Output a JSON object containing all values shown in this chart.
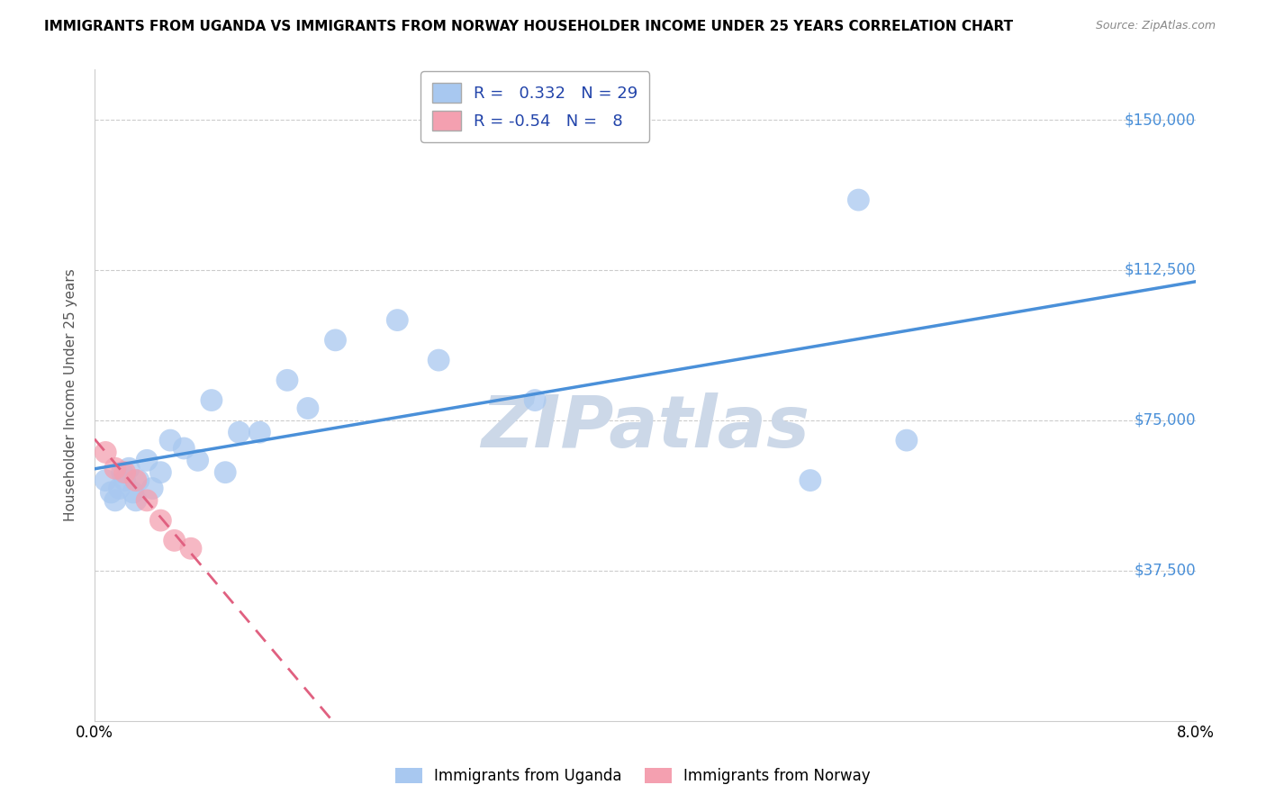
{
  "title": "IMMIGRANTS FROM UGANDA VS IMMIGRANTS FROM NORWAY HOUSEHOLDER INCOME UNDER 25 YEARS CORRELATION CHART",
  "source": "Source: ZipAtlas.com",
  "ylabel": "Householder Income Under 25 years",
  "xlim": [
    0.0,
    8.0
  ],
  "ylim": [
    0,
    162500
  ],
  "yticks": [
    0,
    37500,
    75000,
    112500,
    150000
  ],
  "ytick_labels": [
    "",
    "$37,500",
    "$75,000",
    "$112,500",
    "$150,000"
  ],
  "xticks": [
    0.0,
    1.0,
    2.0,
    3.0,
    4.0,
    5.0,
    6.0,
    7.0,
    8.0
  ],
  "uganda_color": "#a8c8f0",
  "norway_color": "#f4a0b0",
  "uganda_line_color": "#4a90d9",
  "norway_line_color": "#e06080",
  "R_uganda": 0.332,
  "N_uganda": 29,
  "R_norway": -0.54,
  "N_norway": 8,
  "watermark": "ZIPatlas",
  "watermark_color": "#ccd8e8",
  "uganda_x": [
    0.08,
    0.12,
    0.15,
    0.18,
    0.2,
    0.22,
    0.25,
    0.28,
    0.3,
    0.32,
    0.38,
    0.42,
    0.48,
    0.55,
    0.65,
    0.75,
    0.85,
    0.95,
    1.05,
    1.2,
    1.4,
    1.55,
    1.75,
    2.2,
    2.5,
    3.2,
    5.2,
    5.55,
    5.9
  ],
  "uganda_y": [
    60000,
    57000,
    55000,
    58000,
    62000,
    60000,
    63000,
    57000,
    55000,
    60000,
    65000,
    58000,
    62000,
    70000,
    68000,
    65000,
    80000,
    62000,
    72000,
    72000,
    85000,
    78000,
    95000,
    100000,
    90000,
    80000,
    60000,
    130000,
    70000
  ],
  "norway_x": [
    0.08,
    0.15,
    0.22,
    0.3,
    0.38,
    0.48,
    0.58,
    0.7
  ],
  "norway_y": [
    67000,
    63000,
    62000,
    60000,
    55000,
    50000,
    45000,
    43000
  ]
}
